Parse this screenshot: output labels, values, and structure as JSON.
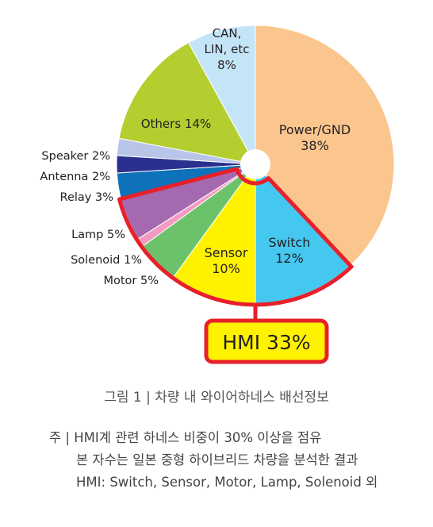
{
  "chart_data": {
    "type": "pie",
    "slices": [
      {
        "label_lines": [
          "Power/GND",
          "38%"
        ],
        "value": 38,
        "color": "#FBC58E"
      },
      {
        "label_lines": [
          "Switch",
          "12%"
        ],
        "value": 12,
        "color": "#45C8F0"
      },
      {
        "label_lines": [
          "Sensor",
          "10%"
        ],
        "value": 10,
        "color": "#FFF200"
      },
      {
        "label_lines": [
          "Motor 5%"
        ],
        "value": 5,
        "color": "#6CC26B"
      },
      {
        "label_lines": [
          "Solenoid 1%"
        ],
        "value": 1,
        "color": "#F49AC2"
      },
      {
        "label_lines": [
          "Lamp 5%"
        ],
        "value": 5,
        "color": "#A569B0"
      },
      {
        "label_lines": [
          "Relay 3%"
        ],
        "value": 3,
        "color": "#0E72BA"
      },
      {
        "label_lines": [
          "Antenna 2%"
        ],
        "value": 2,
        "color": "#2B2F8E"
      },
      {
        "label_lines": [
          "Speaker 2%"
        ],
        "value": 2,
        "color": "#B9C5E8"
      },
      {
        "label_lines": [
          "Others 14%"
        ],
        "value": 14,
        "color": "#B4CE2F"
      },
      {
        "label_lines": [
          "CAN,",
          "LIN, etc",
          "8%"
        ],
        "value": 8,
        "color": "#C4E5F8"
      }
    ],
    "highlight": {
      "label": "HMI 33%",
      "color": "#E8202A",
      "fill": "#FFF200"
    }
  },
  "caption": {
    "title": "그림 1 |  차량 내 와이어하네스 배선정보",
    "note_line1": "주 |  HMI계 관련 하네스 비중이 30% 이상을 점유",
    "note_line2": "본 자수는 일본 중형 하이브리드 차량을 분석한 결과",
    "note_line3": "HMI: Switch, Sensor, Motor, Lamp, Solenoid 외"
  }
}
